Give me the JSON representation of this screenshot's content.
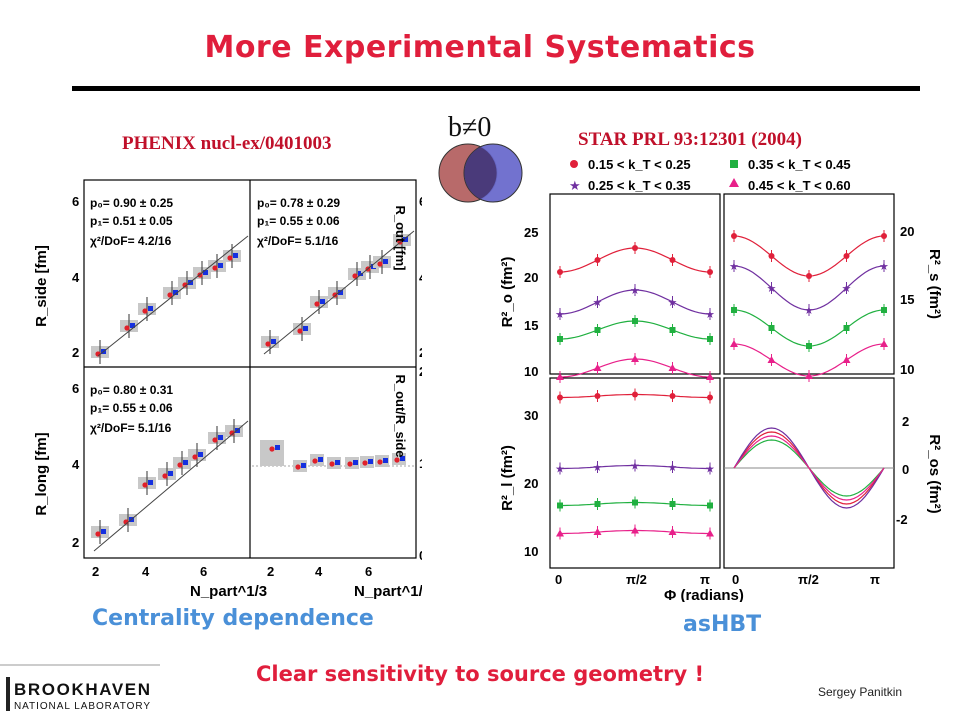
{
  "slide": {
    "title": "More Experimental Systematics",
    "phenix_ref": "PHENIX nucl-ex/0401003",
    "star_ref": "STAR PRL 93:12301 (2004)",
    "impact_label": "b≠0",
    "centrality_caption": "Centrality dependence",
    "ashbt_caption": "asHBT",
    "conclusion": "Clear sensitivity to source geometry !",
    "author": "Sergey Panitkin",
    "logo": {
      "line1": "BROOKHAVEN",
      "line2": "NATIONAL LABORATORY"
    },
    "colors": {
      "title": "#e01e3c",
      "caption": "#4a90d8",
      "venn_left": "#b86a6a",
      "venn_right": "#6a6acc",
      "venn_overlap": "#4a3a7a"
    }
  },
  "phenix": {
    "fits": [
      {
        "p0": "p₀= 0.90 ± 0.25",
        "p1": "p₁= 0.51 ± 0.05",
        "chi": "χ²/DoF= 4.2/16"
      },
      {
        "p0": "p₀= 0.78 ± 0.29",
        "p1": "p₁= 0.55 ± 0.06",
        "chi": "χ²/DoF= 5.1/16"
      },
      {
        "p0": "p₀= 0.80 ± 0.31",
        "p1": "p₁= 0.55 ± 0.06",
        "chi": "χ²/DoF= 5.1/16"
      }
    ],
    "ylabels": [
      "R_side [fm]",
      "R_out [fm]",
      "R_long [fm]",
      "R_out/R_side"
    ],
    "xlabel": "N_part^1/3",
    "xticks": [
      "2",
      "4",
      "6"
    ],
    "yticks_radii": [
      "2",
      "4",
      "6"
    ],
    "yticks_ratio": [
      "0",
      "1",
      "2"
    ]
  },
  "star": {
    "legend": [
      "0.15 < k_T < 0.25",
      "0.35 < k_T < 0.45",
      "0.25 < k_T < 0.35",
      "0.45 < k_T < 0.60"
    ],
    "legend_colors": [
      "#e0203a",
      "#20b040",
      "#7030a0",
      "#e8208a"
    ],
    "ylabels": [
      "R²_o (fm²)",
      "R²_s (fm²)",
      "R²_l (fm²)",
      "R²_os (fm²)"
    ],
    "xlabel": "Φ (radians)",
    "xticks": [
      "0",
      "π/2",
      "π"
    ],
    "yticks_o": [
      "10",
      "15",
      "20",
      "25"
    ],
    "yticks_s": [
      "10",
      "15",
      "20"
    ],
    "yticks_l": [
      "10",
      "20",
      "30"
    ],
    "yticks_os": [
      "-2",
      "0",
      "2"
    ]
  }
}
